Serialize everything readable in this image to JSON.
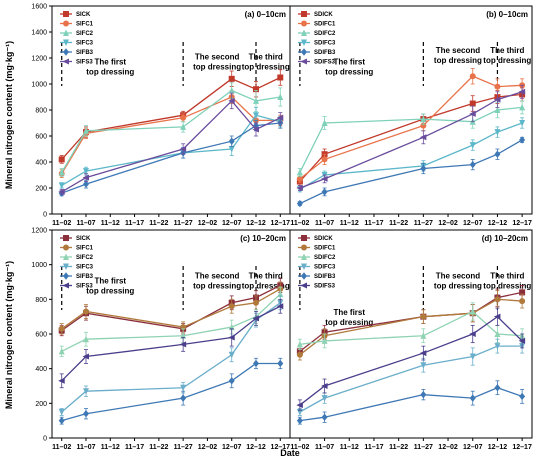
{
  "ylabel": "Mineral nitrogen content (mg·kg⁻¹)",
  "xlabel": "Date",
  "chart_data": [
    {
      "type": "line",
      "panel": "top-left",
      "title": "(a) 0–10cm",
      "categories": [
        "11–02",
        "11–07",
        "11–12",
        "11–17",
        "11–22",
        "11–27",
        "12–02",
        "12–07",
        "12–12",
        "12–17"
      ],
      "x": [
        0,
        5,
        25,
        35,
        40,
        45
      ],
      "ylim": [
        0,
        1600
      ],
      "yticks": [
        0,
        200,
        400,
        600,
        800,
        1000,
        1200,
        1400,
        1600
      ],
      "annotations": [
        {
          "lines": [
            "The first",
            "top dressing"
          ],
          "x": 10,
          "y": 1150
        },
        {
          "lines": [
            "The second",
            "top dressing"
          ],
          "x": 32,
          "y": 1190
        },
        {
          "lines": [
            "The third",
            "top dressing"
          ],
          "x": 42,
          "y": 1190
        }
      ],
      "dashed_x": [
        0,
        25,
        40
      ],
      "series": [
        {
          "name": "SICK",
          "color": "#c0392b",
          "marker": "square",
          "values": [
            420,
            630,
            760,
            1040,
            960,
            1050
          ],
          "err": [
            30,
            40,
            30,
            60,
            60,
            60
          ]
        },
        {
          "name": "SIFC1",
          "color": "#e8734a",
          "marker": "circle",
          "values": [
            310,
            620,
            740,
            900,
            720,
            720
          ],
          "err": [
            30,
            40,
            30,
            50,
            50,
            40
          ]
        },
        {
          "name": "SIFC2",
          "color": "#7fd1b9",
          "marker": "triangle",
          "values": [
            320,
            640,
            670,
            950,
            870,
            900
          ],
          "err": [
            30,
            40,
            40,
            60,
            80,
            70
          ]
        },
        {
          "name": "SIFC3",
          "color": "#5bb7c9",
          "marker": "triangle-down",
          "values": [
            220,
            330,
            470,
            500,
            760,
            710
          ],
          "err": [
            20,
            30,
            40,
            50,
            60,
            40
          ]
        },
        {
          "name": "SIFB3",
          "color": "#3e78b5",
          "marker": "diamond",
          "values": [
            160,
            230,
            470,
            560,
            680,
            700
          ],
          "err": [
            20,
            30,
            40,
            40,
            40,
            40
          ]
        },
        {
          "name": "SIFS3",
          "color": "#6a4c9c",
          "marker": "triangle-left",
          "values": [
            170,
            280,
            500,
            870,
            650,
            740
          ],
          "err": [
            20,
            30,
            40,
            60,
            50,
            40
          ]
        }
      ]
    },
    {
      "type": "line",
      "panel": "top-right",
      "title": "(b) 0–10cm",
      "categories": [
        "11–02",
        "11–07",
        "11–12",
        "11–17",
        "11–22",
        "11–27",
        "12–02",
        "12–07",
        "12–12",
        "12–17"
      ],
      "x": [
        0,
        5,
        25,
        35,
        40,
        45
      ],
      "ylim": [
        0,
        1600
      ],
      "annotations": [
        {
          "lines": [
            "The first",
            "top dressing"
          ],
          "x": 10,
          "y": 1150
        },
        {
          "lines": [
            "The second",
            "top dressing"
          ],
          "x": 32,
          "y": 1240
        },
        {
          "lines": [
            "The third",
            "top dressing"
          ],
          "x": 42,
          "y": 1240
        }
      ],
      "dashed_x": [
        0,
        25,
        40
      ],
      "series": [
        {
          "name": "SDICK",
          "color": "#c0392b",
          "marker": "square",
          "values": [
            250,
            460,
            730,
            850,
            900,
            920
          ],
          "err": [
            30,
            40,
            40,
            60,
            50,
            50
          ]
        },
        {
          "name": "SDIFC1",
          "color": "#e8734a",
          "marker": "circle",
          "values": [
            270,
            420,
            680,
            1060,
            980,
            990
          ],
          "err": [
            30,
            40,
            40,
            60,
            60,
            50
          ]
        },
        {
          "name": "SDIFC2",
          "color": "#7fd1b9",
          "marker": "triangle",
          "values": [
            320,
            700,
            730,
            710,
            800,
            820
          ],
          "err": [
            30,
            50,
            40,
            50,
            60,
            50
          ]
        },
        {
          "name": "SDIFC3",
          "color": "#5bb7c9",
          "marker": "triangle-down",
          "values": [
            190,
            300,
            370,
            530,
            630,
            700
          ],
          "err": [
            20,
            30,
            40,
            40,
            40,
            40
          ]
        },
        {
          "name": "SDIFB3",
          "color": "#3e78b5",
          "marker": "diamond",
          "values": [
            80,
            170,
            350,
            380,
            460,
            570
          ],
          "err": [
            15,
            30,
            40,
            40,
            40,
            20
          ]
        },
        {
          "name": "SDIFS3",
          "color": "#6a4c9c",
          "marker": "triangle-left",
          "values": [
            200,
            270,
            590,
            770,
            880,
            940
          ],
          "err": [
            20,
            30,
            50,
            60,
            60,
            50
          ]
        }
      ]
    },
    {
      "type": "line",
      "panel": "bottom-left",
      "title": "(c) 10–20cm",
      "categories": [
        "11–02",
        "11–07",
        "11–12",
        "11–17",
        "11–22",
        "11–27",
        "12–02",
        "12–07",
        "12–12",
        "12–17"
      ],
      "x": [
        0,
        5,
        25,
        35,
        40,
        45
      ],
      "ylim": [
        0,
        1200
      ],
      "yticks": [
        0,
        200,
        400,
        600,
        800,
        1000,
        1200
      ],
      "annotations": [
        {
          "lines": [
            "The first",
            "top dressing"
          ],
          "x": 10,
          "y": 890
        },
        {
          "lines": [
            "The second",
            "top dressing"
          ],
          "x": 32,
          "y": 920
        },
        {
          "lines": [
            "The third",
            "top dressing"
          ],
          "x": 42,
          "y": 920
        }
      ],
      "dashed_x": [
        0,
        25,
        40
      ],
      "series": [
        {
          "name": "SICK",
          "color": "#8b2f3c",
          "marker": "square",
          "values": [
            620,
            720,
            630,
            780,
            810,
            880
          ],
          "err": [
            30,
            40,
            30,
            40,
            40,
            40
          ]
        },
        {
          "name": "SIFC1",
          "color": "#b07a3c",
          "marker": "circle",
          "values": [
            630,
            730,
            640,
            760,
            780,
            860
          ],
          "err": [
            30,
            40,
            30,
            40,
            40,
            40
          ]
        },
        {
          "name": "SIFC2",
          "color": "#8fd3b3",
          "marker": "triangle",
          "values": [
            500,
            570,
            590,
            640,
            700,
            830
          ],
          "err": [
            30,
            40,
            40,
            40,
            40,
            40
          ]
        },
        {
          "name": "SIFC3",
          "color": "#6aaecb",
          "marker": "triangle-down",
          "values": [
            150,
            270,
            290,
            480,
            680,
            780
          ],
          "err": [
            20,
            30,
            30,
            40,
            40,
            40
          ]
        },
        {
          "name": "SIFB3",
          "color": "#3e78b5",
          "marker": "diamond",
          "values": [
            100,
            140,
            230,
            330,
            430,
            430
          ],
          "err": [
            20,
            30,
            40,
            40,
            30,
            30
          ]
        },
        {
          "name": "SIFS3",
          "color": "#4b3f8c",
          "marker": "triangle-left",
          "values": [
            330,
            470,
            540,
            580,
            690,
            760
          ],
          "err": [
            40,
            40,
            40,
            50,
            40,
            40
          ]
        }
      ]
    },
    {
      "type": "line",
      "panel": "bottom-right",
      "title": "(d) 10–20cm",
      "categories": [
        "11–02",
        "11–07",
        "11–12",
        "11–17",
        "11–22",
        "11–27",
        "12–02",
        "12–07",
        "12–12",
        "12–17"
      ],
      "x": [
        0,
        5,
        25,
        35,
        40,
        45
      ],
      "ylim": [
        0,
        1200
      ],
      "annotations": [
        {
          "lines": [
            "The first",
            "top dressing"
          ],
          "x": 10,
          "y": 710
        },
        {
          "lines": [
            "The second",
            "top dressing"
          ],
          "x": 32,
          "y": 920
        },
        {
          "lines": [
            "The third",
            "top dressing"
          ],
          "x": 42,
          "y": 920
        }
      ],
      "dashed_x": [
        0,
        25,
        40
      ],
      "series": [
        {
          "name": "SDICK",
          "color": "#8b2f3c",
          "marker": "square",
          "values": [
            500,
            610,
            700,
            720,
            810,
            840
          ],
          "err": [
            30,
            40,
            40,
            50,
            50,
            40
          ]
        },
        {
          "name": "SDIFC1",
          "color": "#b07a3c",
          "marker": "circle",
          "values": [
            480,
            590,
            700,
            720,
            800,
            790
          ],
          "err": [
            30,
            40,
            40,
            50,
            50,
            40
          ]
        },
        {
          "name": "SDIFC2",
          "color": "#8fd3b3",
          "marker": "triangle",
          "values": [
            540,
            560,
            590,
            730,
            600,
            590
          ],
          "err": [
            30,
            40,
            40,
            50,
            50,
            40
          ]
        },
        {
          "name": "SDIFC3",
          "color": "#6aaecb",
          "marker": "triangle-down",
          "values": [
            150,
            230,
            420,
            470,
            530,
            530
          ],
          "err": [
            20,
            30,
            40,
            50,
            40,
            40
          ]
        },
        {
          "name": "SDIFB3",
          "color": "#3e78b5",
          "marker": "diamond",
          "values": [
            100,
            120,
            250,
            230,
            290,
            240
          ],
          "err": [
            20,
            30,
            30,
            40,
            40,
            40
          ]
        },
        {
          "name": "SDIFS3",
          "color": "#4b3f8c",
          "marker": "triangle-left",
          "values": [
            190,
            300,
            490,
            600,
            700,
            560
          ],
          "err": [
            30,
            40,
            40,
            50,
            50,
            40
          ]
        }
      ]
    }
  ]
}
